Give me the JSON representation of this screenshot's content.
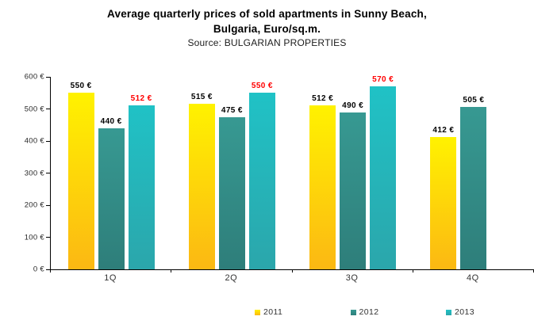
{
  "header": {
    "title_line1": "Average quarterly prices of sold apartments in Sunny Beach,",
    "title_line2": "Bulgaria, Euro/sq.m.",
    "source": "Source: BULGARIAN PROPERTIES"
  },
  "chart_data": {
    "type": "bar",
    "title": "Average quarterly prices of sold apartments in Sunny Beach, Bulgaria, Euro/sq.m.",
    "subtitle": "Source: BULGARIAN PROPERTIES",
    "categories": [
      "1Q",
      "2Q",
      "3Q",
      "4Q"
    ],
    "series": [
      {
        "name": "2011",
        "values": [
          550,
          515,
          512,
          412
        ],
        "color_top": "#FFF200",
        "color_bottom": "#FCB813",
        "label_color": "#000000"
      },
      {
        "name": "2012",
        "values": [
          440,
          475,
          490,
          505
        ],
        "color_top": "#379992",
        "color_bottom": "#2E7E7A",
        "label_color": "#000000"
      },
      {
        "name": "2013",
        "values": [
          512,
          550,
          570,
          null
        ],
        "color_top": "#20C2C6",
        "color_bottom": "#2BA6AB",
        "label_color": "#FF0000"
      }
    ],
    "value_suffix": " €",
    "xlabel": "",
    "ylabel": "",
    "ylim": [
      0,
      600
    ],
    "ytick_step": 100,
    "ytick_suffix": " €",
    "grid": false,
    "legend_position": "bottom"
  }
}
